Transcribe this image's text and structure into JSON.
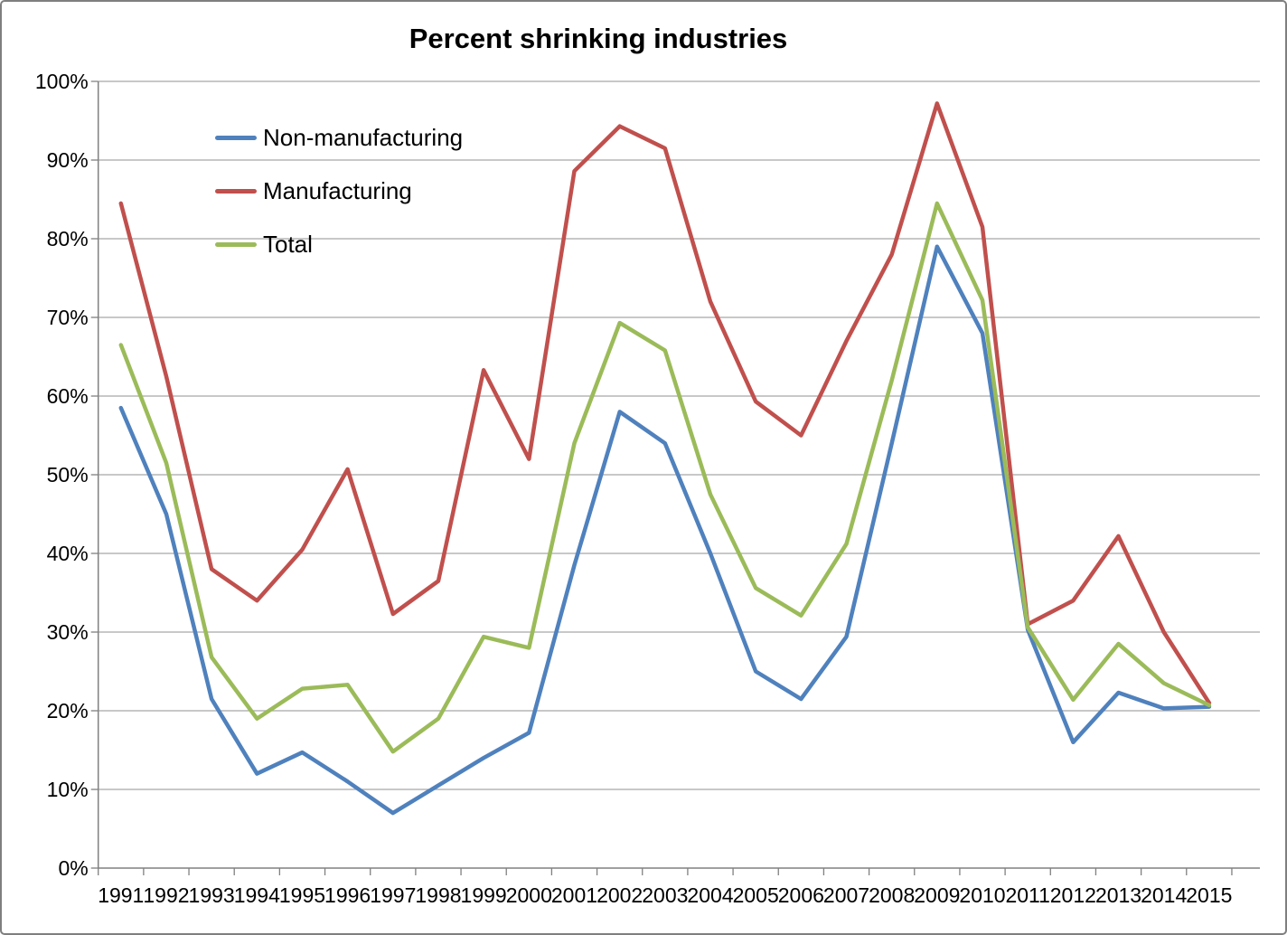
{
  "chart": {
    "title": "Percent shrinking industries"
  },
  "chart_data": {
    "type": "line",
    "title": "Percent shrinking industries",
    "xlabel": "",
    "ylabel": "",
    "categories": [
      "1991",
      "1992",
      "1993",
      "1994",
      "1995",
      "1996",
      "1997",
      "1998",
      "1999",
      "2000",
      "2001",
      "2002",
      "2003",
      "2004",
      "2005",
      "2006",
      "2007",
      "2008",
      "2009",
      "2010",
      "2011",
      "2012",
      "2013",
      "2014",
      "2015"
    ],
    "series": [
      {
        "name": "Non-manufacturing",
        "color": "#4F81BD",
        "values": [
          58.5,
          45,
          21.5,
          12,
          14.7,
          11,
          7,
          10.5,
          14,
          17.2,
          38.5,
          58,
          54,
          40,
          25,
          21.5,
          29.4,
          54,
          79,
          68,
          30.3,
          16,
          22.3,
          20.3,
          20.5
        ]
      },
      {
        "name": "Manufacturing",
        "color": "#C0504D",
        "values": [
          84.5,
          62.5,
          38,
          34,
          40.5,
          50.7,
          32.3,
          36.5,
          63.3,
          52,
          88.6,
          94.3,
          91.5,
          72,
          59.3,
          55,
          67,
          78,
          97.2,
          81.5,
          31,
          34,
          42.2,
          30,
          21
        ]
      },
      {
        "name": "Total",
        "color": "#9BBB59",
        "values": [
          66.5,
          51.5,
          26.8,
          19,
          22.8,
          23.3,
          14.8,
          19,
          29.4,
          28,
          54,
          69.3,
          65.8,
          47.5,
          35.6,
          32.1,
          41.2,
          62,
          84.5,
          72.2,
          30.6,
          21.4,
          28.5,
          23.5,
          20.7
        ]
      }
    ],
    "ylim": [
      0,
      100
    ],
    "y_tick_labels": [
      "0%",
      "10%",
      "20%",
      "30%",
      "40%",
      "50%",
      "60%",
      "70%",
      "80%",
      "90%",
      "100%"
    ],
    "grid": "horizontal",
    "legend_position": "inside-top-left"
  },
  "colors": {
    "background": "#FFFFFF",
    "border": "#7F7F7F",
    "gridline": "#A6A6A6",
    "axis": "#808080",
    "text": "#000000"
  }
}
